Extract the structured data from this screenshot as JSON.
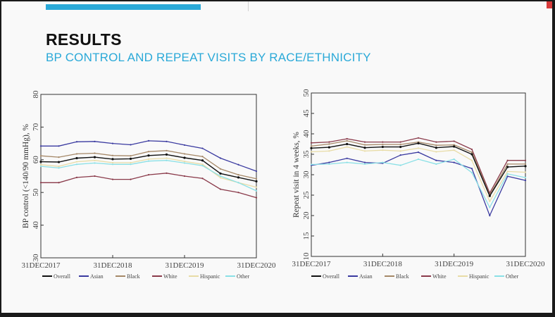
{
  "slide": {
    "title": "RESULTS",
    "subtitle": "BP CONTROL AND REPEAT VISITS BY RACE/ETHNICITY"
  },
  "colors": {
    "accent": "#2aa9d8",
    "Overall": "#111111",
    "Asian": "#3a3aa0",
    "Black": "#a58868",
    "White": "#8a3a4a",
    "Hispanic": "#e8dca6",
    "Other": "#8ae0e6"
  },
  "chart_data": [
    {
      "type": "line",
      "xlabel": "",
      "ylabel": "BP control (<140/90 mmHg), %",
      "ylim": [
        30,
        80
      ],
      "yticks": [
        "30",
        "40",
        "50",
        "60",
        "70",
        "80"
      ],
      "x_tick_labels": [
        "31DEC2017",
        "31DEC2018",
        "31DEC2019",
        "31DEC2020"
      ],
      "grid": false,
      "legend_placement": "bottom",
      "series": [
        {
          "name": "Asian",
          "values": [
            64.2,
            64.2,
            65.5,
            65.6,
            65.0,
            64.6,
            65.8,
            65.6,
            64.5,
            63.5,
            60.5,
            58.5,
            56.5
          ]
        },
        {
          "name": "Black",
          "values": [
            61.2,
            60.8,
            61.8,
            62.0,
            61.3,
            61.2,
            62.5,
            62.8,
            61.8,
            61.0,
            57.2,
            55.4,
            54.2
          ]
        },
        {
          "name": "Overall",
          "values": [
            59.4,
            59.3,
            60.5,
            60.8,
            60.2,
            60.3,
            61.3,
            61.6,
            60.6,
            59.8,
            55.8,
            54.6,
            53.4
          ]
        },
        {
          "name": "Hispanic",
          "values": [
            58.5,
            58.0,
            59.4,
            59.8,
            59.1,
            59.1,
            60.2,
            60.5,
            59.5,
            58.6,
            54.5,
            53.0,
            51.6
          ]
        },
        {
          "name": "Other",
          "values": [
            58.0,
            57.5,
            58.6,
            59.0,
            58.6,
            58.6,
            59.6,
            59.8,
            59.0,
            58.2,
            55.0,
            53.0,
            50.5
          ]
        },
        {
          "name": "White",
          "values": [
            53.0,
            53.0,
            54.6,
            55.0,
            54.0,
            54.0,
            55.4,
            55.9,
            55.0,
            54.3,
            51.0,
            50.0,
            48.4
          ]
        }
      ]
    },
    {
      "type": "line",
      "xlabel": "",
      "ylabel": "Repeat visit in 4 weeks, %",
      "ylim": [
        10,
        50
      ],
      "yticks": [
        "10",
        "15",
        "20",
        "25",
        "30",
        "35",
        "40",
        "45",
        "50"
      ],
      "x_tick_labels": [
        "31DEC2017",
        "31DEC2018",
        "31DEC2019",
        "31DEC2020"
      ],
      "grid": false,
      "legend_placement": "bottom",
      "series": [
        {
          "name": "White",
          "values": [
            37.8,
            38.0,
            38.8,
            38.0,
            38.0,
            38.0,
            39.0,
            38.0,
            38.2,
            36.2,
            25.5,
            33.5,
            33.5
          ]
        },
        {
          "name": "Black",
          "values": [
            37.0,
            37.5,
            38.3,
            37.3,
            37.4,
            37.4,
            38.0,
            37.2,
            37.3,
            35.5,
            25.0,
            32.6,
            32.6
          ]
        },
        {
          "name": "Overall",
          "values": [
            36.5,
            36.7,
            37.5,
            36.6,
            36.8,
            36.8,
            37.7,
            36.6,
            36.9,
            35.0,
            24.8,
            31.9,
            32.1
          ]
        },
        {
          "name": "Hispanic",
          "values": [
            35.6,
            35.8,
            36.8,
            35.8,
            36.0,
            35.8,
            36.5,
            35.6,
            36.0,
            33.5,
            23.5,
            30.8,
            30.6
          ]
        },
        {
          "name": "Asian",
          "values": [
            32.3,
            33.0,
            34.0,
            33.0,
            32.8,
            34.8,
            35.5,
            33.5,
            33.0,
            31.5,
            20.0,
            29.6,
            28.6
          ]
        },
        {
          "name": "Other",
          "values": [
            32.5,
            32.6,
            33.0,
            32.6,
            33.0,
            32.3,
            33.8,
            32.6,
            33.8,
            30.5,
            22.0,
            30.2,
            29.3
          ]
        }
      ]
    }
  ]
}
